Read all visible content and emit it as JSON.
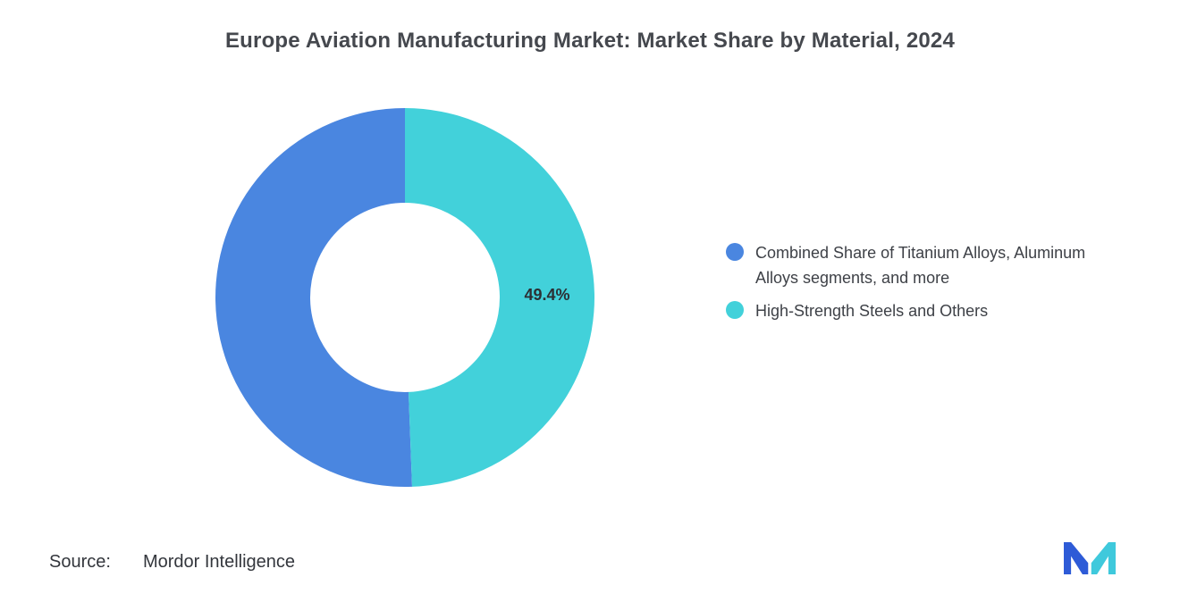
{
  "chart_data": {
    "type": "pie",
    "subtype": "donut",
    "title": "Europe Aviation Manufacturing Market: Market Share by Material, 2024",
    "values_unit": "%",
    "slices": [
      {
        "name": "titanium-aluminum-and-more",
        "legend": "Combined Share of Titanium Alloys, Aluminum Alloys segments, and more",
        "value": 50.6,
        "color": "#4A86E0",
        "data_label": ""
      },
      {
        "name": "high-strength-steels-and-others",
        "legend": "High-Strength Steels and Others",
        "value": 49.4,
        "color": "#42D1DA",
        "data_label": "49.4%"
      }
    ],
    "layout": {
      "start_angle_deg": 177.84,
      "inner_radius_ratio": 0.5,
      "legend_position": "right",
      "grid": false,
      "label_color": "#2c2f34"
    }
  },
  "source": {
    "label": "Source:",
    "value": "Mordor Intelligence"
  },
  "logo": {
    "name": "mordor-intelligence-logo",
    "blue": "#2E5BD7",
    "teal": "#3FC9DC"
  }
}
